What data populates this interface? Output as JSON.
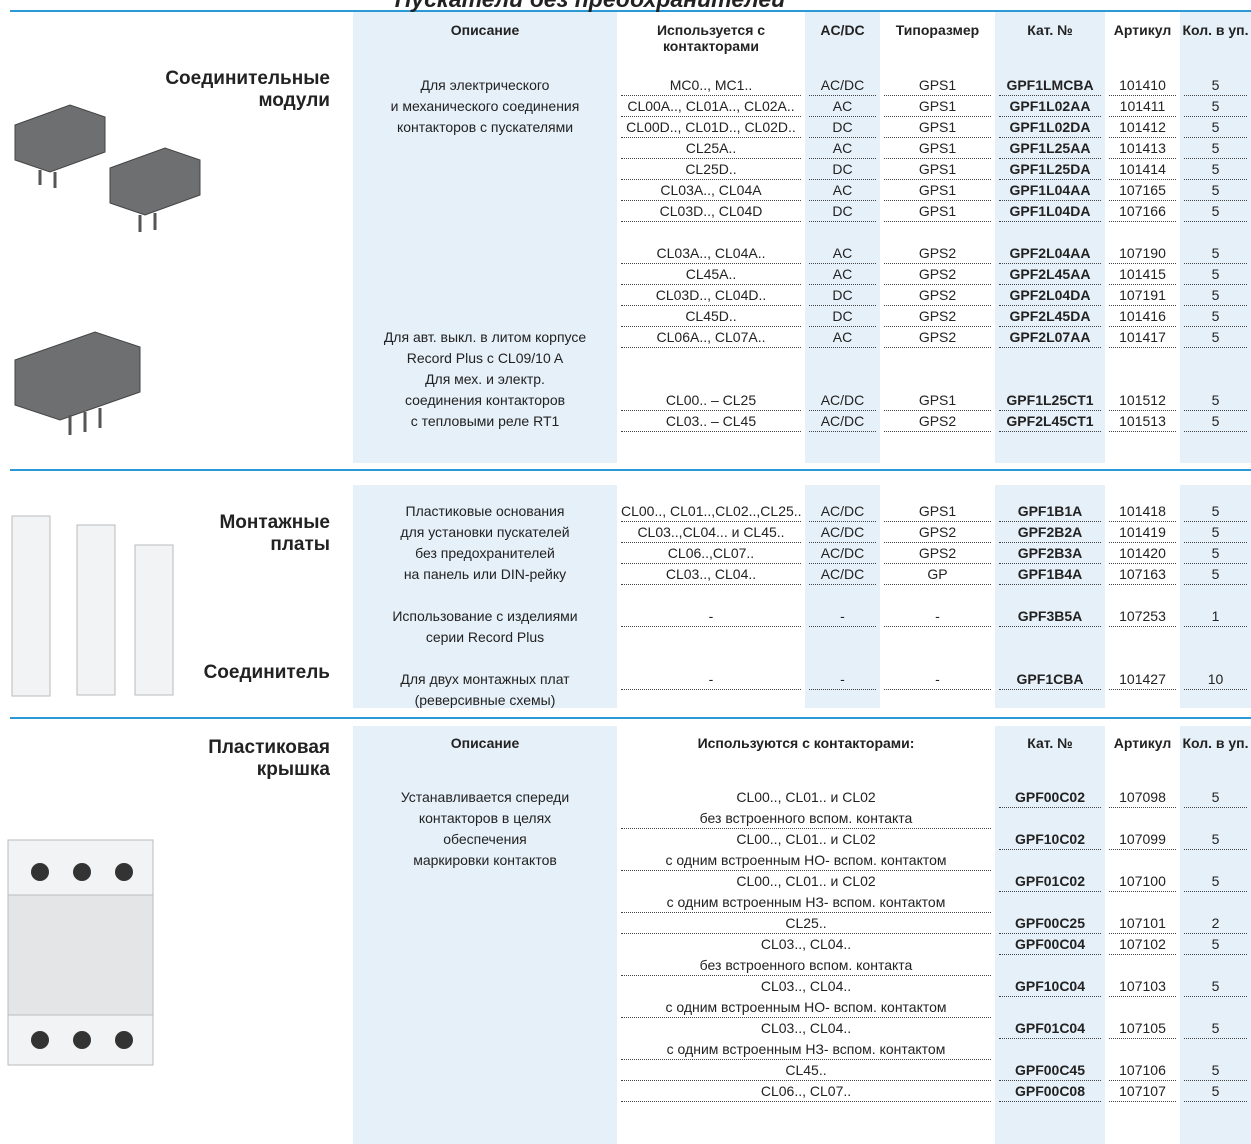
{
  "title": "Пускатели без предохранителей",
  "sections": [
    {
      "labels": [
        [
          "Соединительные",
          "модули"
        ]
      ],
      "headers": [
        "Описание",
        "Используется с контакторами",
        "AC/DC",
        "Типоразмер",
        "Кат. №",
        "Артикул",
        "Кол. в уп."
      ],
      "descriptions": [
        [
          "Для электрического",
          "и механического соединения",
          "контакторов с пускателями"
        ],
        [
          "Для авт. выкл. в литом корпусе",
          "Record Plus с CL09/10 A"
        ],
        [
          "Для мех. и электр.",
          "соединения контакторов",
          "с тепловыми реле RT1"
        ]
      ],
      "rows": [
        [
          "MC0.., MC1..",
          "AC/DC",
          "GPS1",
          "GPF1LMCBA",
          101410,
          5
        ],
        [
          "CL00A.., CL01A.., CL02A..",
          "AC",
          "GPS1",
          "GPF1L02AA",
          101411,
          5
        ],
        [
          "CL00D.., CL01D.., CL02D..",
          "DC",
          "GPS1",
          "GPF1L02DA",
          101412,
          5
        ],
        [
          "CL25A..",
          "AC",
          "GPS1",
          "GPF1L25AA",
          101413,
          5
        ],
        [
          "CL25D..",
          "DC",
          "GPS1",
          "GPF1L25DA",
          101414,
          5
        ],
        [
          "CL03A.., CL04A",
          "AC",
          "GPS1",
          "GPF1L04AA",
          107165,
          5
        ],
        [
          "CL03D.., CL04D",
          "DC",
          "GPS1",
          "GPF1L04DA",
          107166,
          5
        ],
        [
          "CL03A.., CL04A..",
          "AC",
          "GPS2",
          "GPF2L04AA",
          107190,
          5
        ],
        [
          "CL45A..",
          "AC",
          "GPS2",
          "GPF2L45AA",
          101415,
          5
        ],
        [
          "CL03D.., CL04D..",
          "DC",
          "GPS2",
          "GPF2L04DA",
          107191,
          5
        ],
        [
          "CL45D..",
          "DC",
          "GPS2",
          "GPF2L45DA",
          101416,
          5
        ],
        [
          "CL06A.., CL07A..",
          "AC",
          "GPS2",
          "GPF2L07AA",
          101417,
          5
        ],
        [
          "CL00.. – CL25",
          "AC/DC",
          "GPS1",
          "GPF1L25CT1",
          101512,
          5
        ],
        [
          "CL03.. – CL45",
          "AC/DC",
          "GPS2",
          "GPF2L45CT1",
          101513,
          5
        ]
      ]
    },
    {
      "labels": [
        [
          "Монтажные",
          "платы"
        ],
        [
          "Соединитель"
        ]
      ],
      "descriptions": [
        [
          "Пластиковые основания",
          "для установки пускателей",
          "без предохранителей",
          "на панель или DIN-рейку"
        ],
        [
          "Использование с изделиями",
          "серии Record Plus"
        ],
        [
          "Для двух монтажных плат",
          "(реверсивные схемы)"
        ]
      ],
      "rows": [
        [
          "CL00.., CL01..,CL02..,CL25..",
          "AC/DC",
          "GPS1",
          "GPF1B1A",
          101418,
          5
        ],
        [
          "CL03..,CL04... и CL45..",
          "AC/DC",
          "GPS2",
          "GPF2B2A",
          101419,
          5
        ],
        [
          "CL06..,CL07..",
          "AC/DC",
          "GPS2",
          "GPF2B3A",
          101420,
          5
        ],
        [
          "CL03.., CL04..",
          "AC/DC",
          "GP",
          "GPF1B4A",
          107163,
          5
        ],
        [
          "-",
          "-",
          "-",
          "GPF3B5A",
          107253,
          1
        ],
        [
          "-",
          "-",
          "-",
          "GPF1CBA",
          101427,
          10
        ]
      ]
    },
    {
      "labels": [
        [
          "Пластиковая",
          "крышка"
        ]
      ],
      "headers": [
        "Описание",
        "Используются с контакторами:",
        "Кат. №",
        "Артикул",
        "Кол. в уп."
      ],
      "descriptions": [
        [
          "Устанавливается спереди",
          "контакторов в целях",
          "обеспечения",
          "маркировки контактов"
        ]
      ],
      "rows": [
        [
          [
            "CL00.., CL01.. и CL02",
            "без встроенного вспом. контакта"
          ],
          "GPF00C02",
          107098,
          5
        ],
        [
          [
            "CL00.., CL01.. и CL02",
            "с одним встроенным НО- вспом. контактом"
          ],
          "GPF10C02",
          107099,
          5
        ],
        [
          [
            "CL00.., CL01.. и CL02",
            "с одним встроенным НЗ- вспом. контактом"
          ],
          "GPF01C02",
          107100,
          5
        ],
        [
          [
            "CL25.."
          ],
          "GPF00C25",
          107101,
          2
        ],
        [
          [
            "CL03.., CL04..",
            "без встроенного вспом. контакта"
          ],
          "GPF00C04",
          107102,
          5
        ],
        [
          [
            "CL03.., CL04..",
            "с одним встроенным НО- вспом. контактом"
          ],
          "GPF10C04",
          107103,
          5
        ],
        [
          [
            "CL03.., CL04..",
            "с одним встроенным НЗ- вспом. контактом"
          ],
          "GPF01C04",
          107105,
          5
        ],
        [
          [
            "CL45.."
          ],
          "GPF00C45",
          107106,
          5
        ],
        [
          [
            "CL06.., CL07.."
          ],
          "GPF00C08",
          107107,
          5
        ]
      ]
    }
  ]
}
